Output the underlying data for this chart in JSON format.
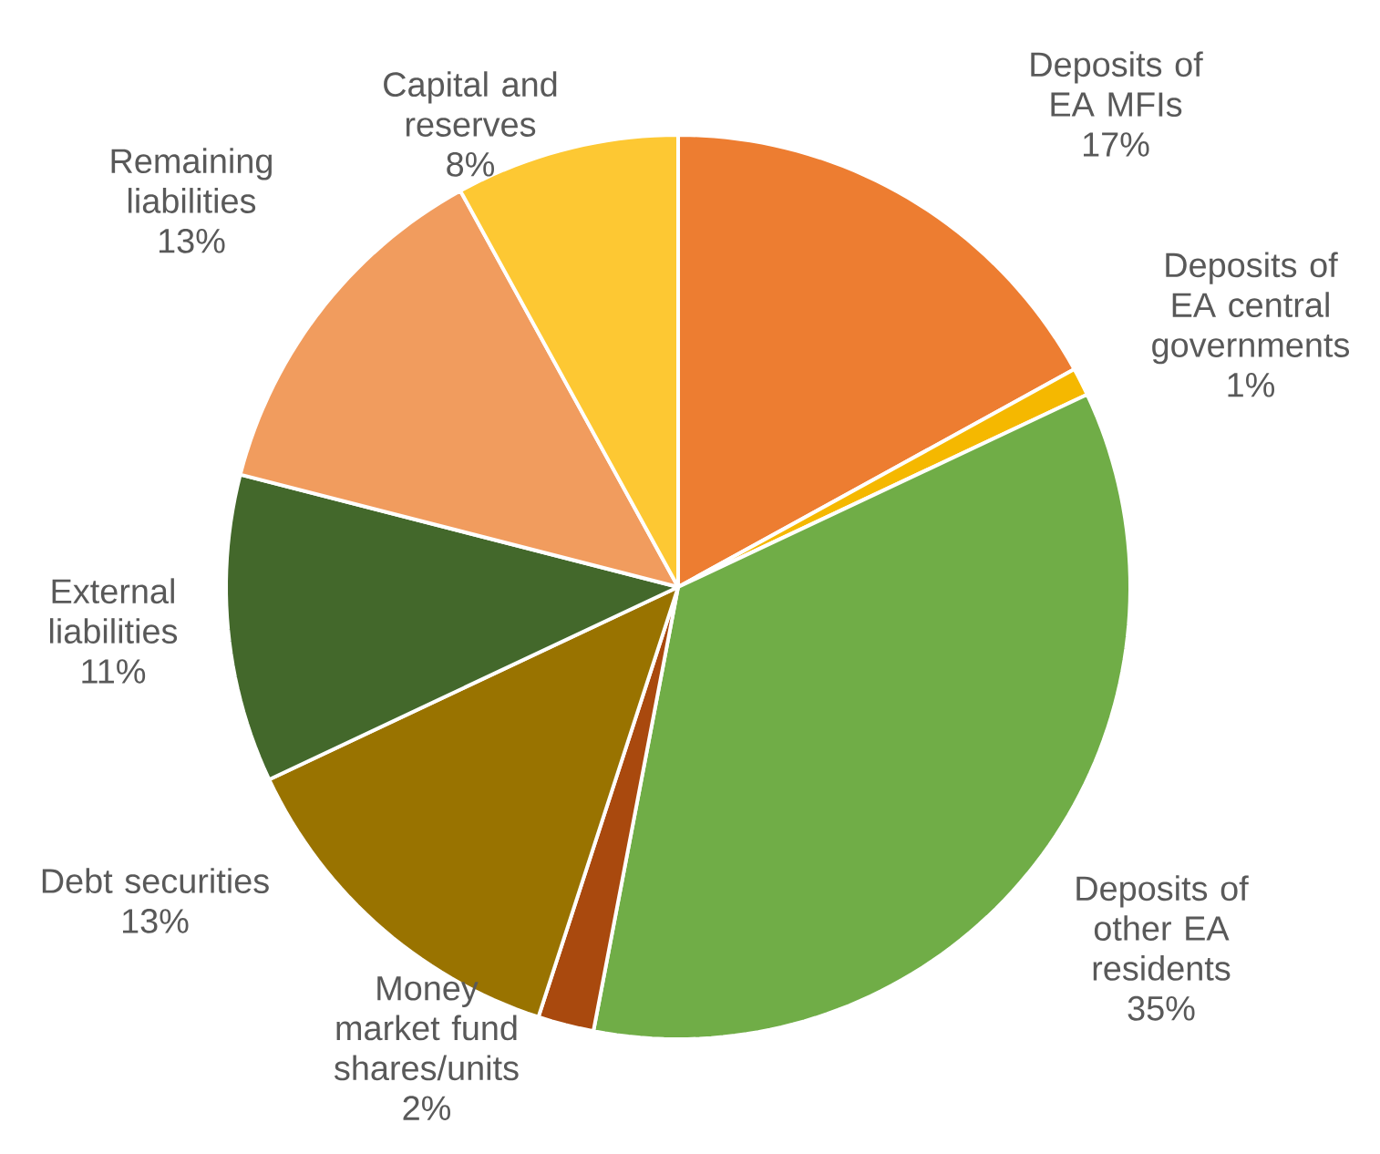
{
  "chart_data": {
    "type": "pie",
    "categories": [
      "Deposits of EA MFIs",
      "Deposits of EA central governments",
      "Deposits of other EA residents",
      "Money market fund shares/units",
      "Debt securities",
      "External liabilities",
      "Remaining liabilities",
      "Capital and reserves"
    ],
    "values": [
      17,
      1,
      35,
      2,
      13,
      11,
      13,
      8
    ],
    "value_labels": [
      "17%",
      "1%",
      "35%",
      "2%",
      "13%",
      "11%",
      "13%",
      "8%"
    ],
    "colors": [
      "#ed7d31",
      "#f5b800",
      "#70ad47",
      "#a9490e",
      "#997300",
      "#43682b",
      "#f19c5e",
      "#fdc833"
    ],
    "legend": false
  }
}
